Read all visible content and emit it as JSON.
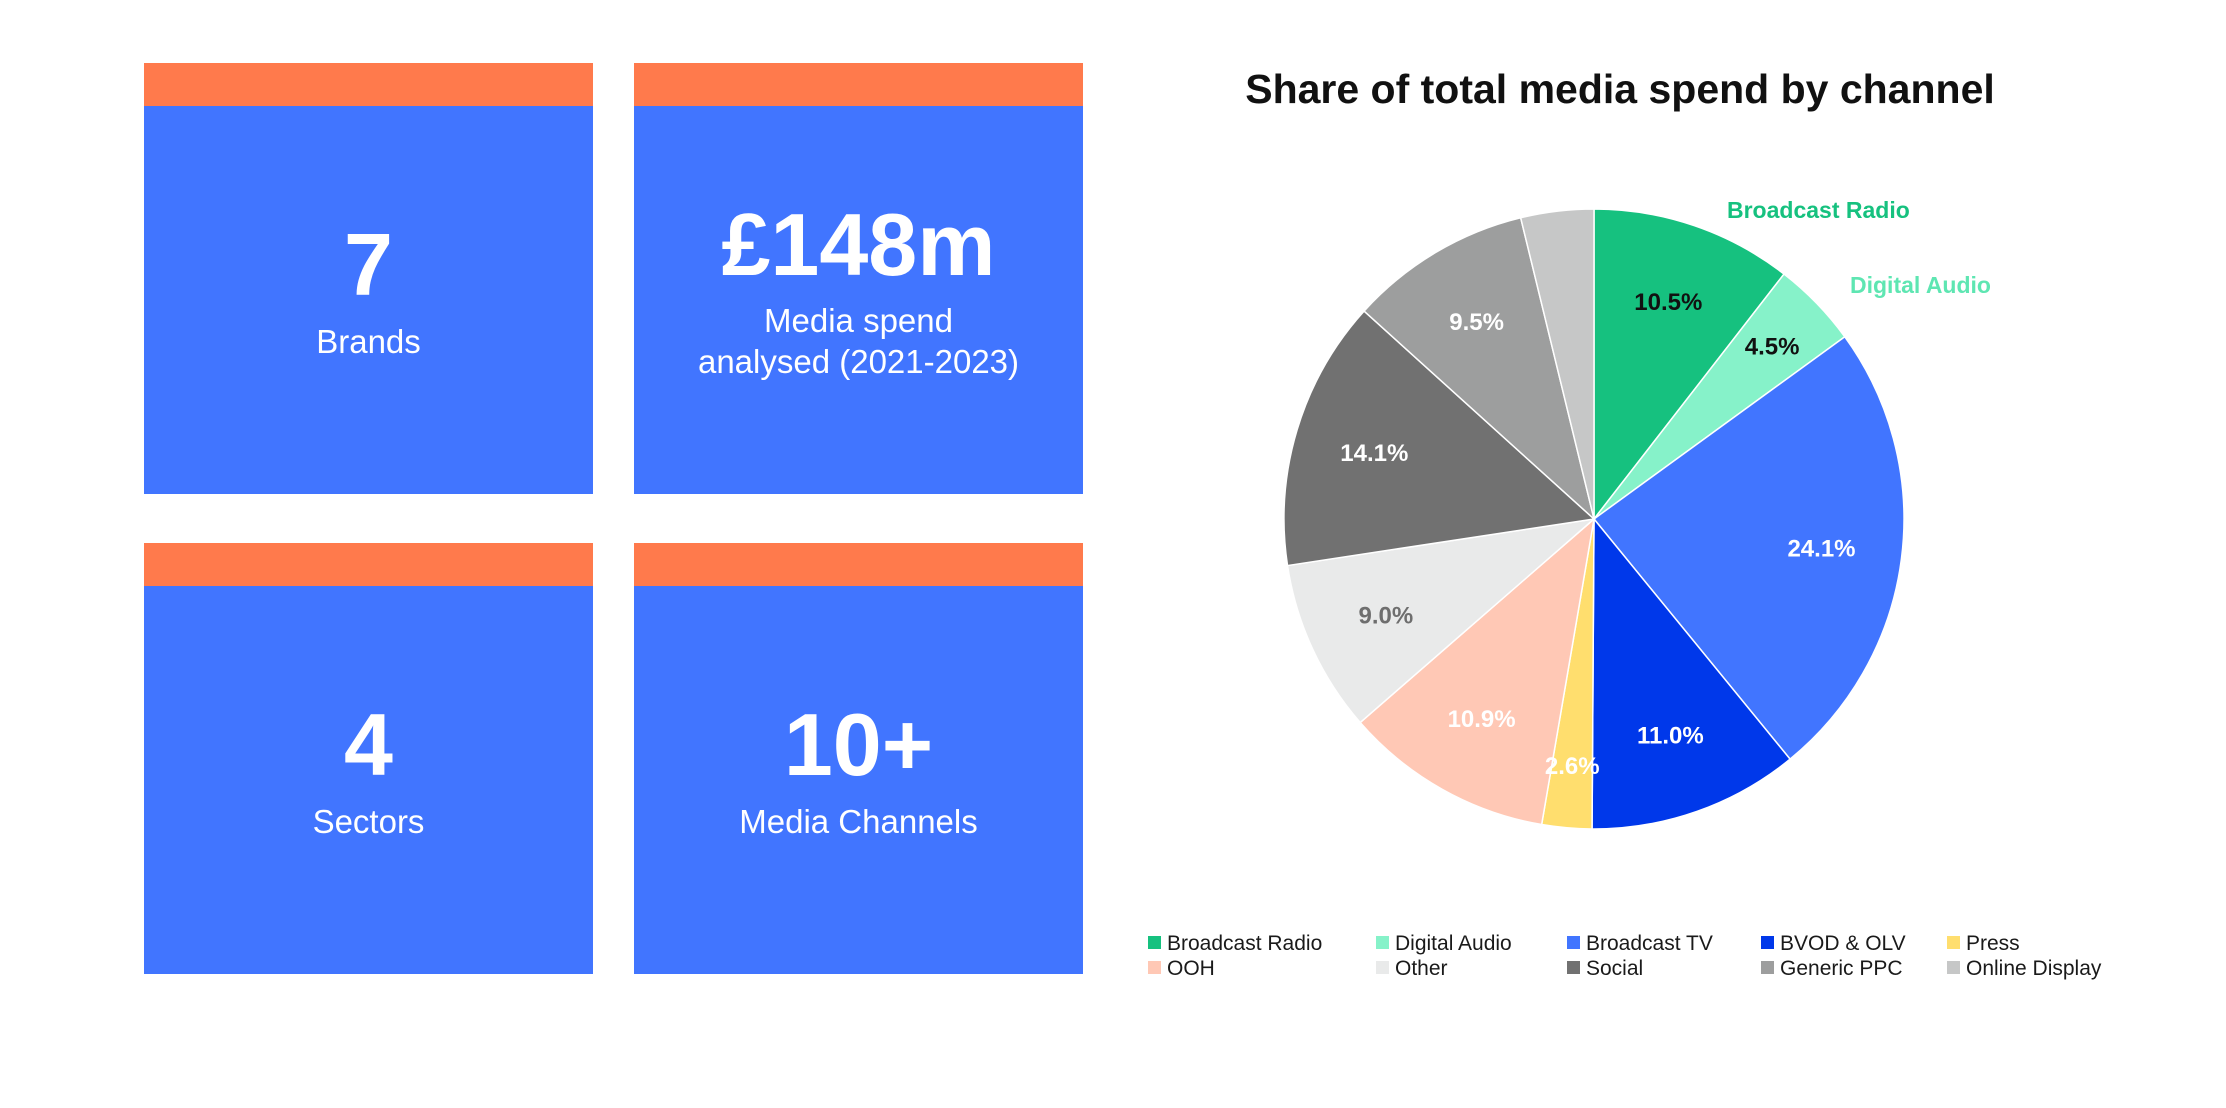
{
  "stats": [
    {
      "value": "7",
      "label_lines": [
        "Brands"
      ]
    },
    {
      "value": "£148m",
      "label_lines": [
        "Media spend",
        "analysed (2021-2023)"
      ]
    },
    {
      "value": "4",
      "label_lines": [
        "Sectors"
      ]
    },
    {
      "value": "10+",
      "label_lines": [
        "Media Channels"
      ]
    }
  ],
  "colors": {
    "card": "#4175ff",
    "card_bar": "#ff7a4c"
  },
  "chart_data": {
    "type": "pie",
    "title": "Share of total media spend by channel",
    "slices": [
      {
        "label": "Broadcast Radio",
        "value": 10.5,
        "display": "10.5%",
        "color": "#16c17f",
        "label_color": "#111111"
      },
      {
        "label": "Digital Audio",
        "value": 4.5,
        "display": "4.5%",
        "color": "#86f2c9",
        "label_color": "#111111"
      },
      {
        "label": "Broadcast TV",
        "value": 24.1,
        "display": "24.1%",
        "color": "#4175ff",
        "label_color": "#ffffff"
      },
      {
        "label": "BVOD & OLV",
        "value": 11.0,
        "display": "11.0%",
        "color": "#0038ea",
        "label_color": "#ffffff"
      },
      {
        "label": "Press",
        "value": 2.6,
        "display": "2.6%",
        "color": "#ffde6e",
        "label_color": "#ffffff"
      },
      {
        "label": "OOH",
        "value": 10.9,
        "display": "10.9%",
        "color": "#ffc8b5",
        "label_color": "#ffffff"
      },
      {
        "label": "Other",
        "value": 9.0,
        "display": "9.0%",
        "color": "#e9eaea",
        "label_color": "#6e6e6e"
      },
      {
        "label": "Social",
        "value": 14.1,
        "display": "14.1%",
        "color": "#717171",
        "label_color": "#ffffff"
      },
      {
        "label": "Generic PPC",
        "value": 9.5,
        "display": "9.5%",
        "color": "#9d9e9e",
        "label_color": "#ffffff"
      },
      {
        "label": "Online Display",
        "value": 3.8,
        "display": "",
        "color": "#c6c7c7",
        "label_color": "#ffffff"
      }
    ],
    "callouts": [
      {
        "label": "Broadcast Radio",
        "color": "#16c17f"
      },
      {
        "label": "Digital Audio",
        "color": "#5ee6b2"
      }
    ],
    "legend": {
      "placement": "bottom",
      "columns": 5
    }
  }
}
